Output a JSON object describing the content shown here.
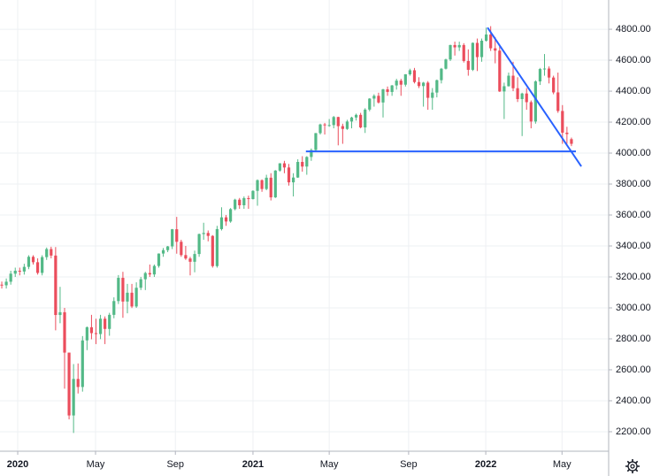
{
  "chart_data": {
    "type": "candlestick",
    "open": [
      3150,
      3146,
      3169,
      3221,
      3240,
      3235,
      3265,
      3330,
      3295,
      3226,
      3328,
      3380,
      3338,
      2954,
      2972,
      2711,
      2305,
      2541,
      2489,
      2790,
      2875,
      2837,
      2831,
      2930,
      2864,
      2955,
      3044,
      3194,
      3041,
      3098,
      3009,
      3130,
      3185,
      3225,
      3216,
      3271,
      3351,
      3373,
      3397,
      3508,
      3427,
      3341,
      3319,
      3298,
      3348,
      3477,
      3484,
      3465,
      3270,
      3509,
      3585,
      3558,
      3638,
      3699,
      3663,
      3709,
      3703,
      3756,
      3825,
      3768,
      3841,
      3714,
      3887,
      3934,
      3907,
      3811,
      3842,
      3943,
      3913,
      3975,
      4020,
      4129,
      4185,
      4180,
      4181,
      4233,
      4174,
      4156,
      4204,
      4230,
      4247,
      4166,
      4281,
      4352,
      4370,
      4327,
      4412,
      4395,
      4437,
      4468,
      4442,
      4509,
      4535,
      4459,
      4433,
      4455,
      4357,
      4391,
      4471,
      4545,
      4605,
      4698,
      4683,
      4698,
      4595,
      4538,
      4712,
      4620,
      4726,
      4766,
      4677,
      4662,
      4398,
      4432,
      4500,
      4419,
      4349,
      4385,
      4329,
      4204,
      4463,
      4543,
      4546,
      4488,
      4392,
      4272,
      4132,
      4090
    ],
    "high": [
      3170,
      3190,
      3240,
      3260,
      3260,
      3285,
      3340,
      3340,
      3320,
      3340,
      3390,
      3395,
      3393,
      3136,
      3000,
      2711,
      2637,
      2641,
      2818,
      2880,
      2955,
      2930,
      2955,
      2945,
      2968,
      3068,
      3212,
      3233,
      3155,
      3155,
      3165,
      3200,
      3233,
      3280,
      3280,
      3352,
      3387,
      3400,
      3510,
      3588,
      3440,
      3400,
      3330,
      3370,
      3480,
      3550,
      3500,
      3470,
      3530,
      3650,
      3600,
      3645,
      3705,
      3710,
      3720,
      3725,
      3760,
      3830,
      3830,
      3860,
      3870,
      3890,
      3935,
      3950,
      3930,
      3870,
      3960,
      3980,
      3980,
      4030,
      4130,
      4190,
      4195,
      4220,
      4240,
      4235,
      4190,
      4215,
      4235,
      4255,
      4260,
      4290,
      4355,
      4380,
      4390,
      4415,
      4430,
      4440,
      4480,
      4480,
      4510,
      4545,
      4550,
      4490,
      4460,
      4465,
      4420,
      4475,
      4550,
      4610,
      4700,
      4720,
      4720,
      4710,
      4670,
      4715,
      4740,
      4740,
      4810,
      4820,
      4750,
      4700,
      4455,
      4520,
      4590,
      4490,
      4390,
      4420,
      4340,
      4470,
      4550,
      4640,
      4560,
      4500,
      4520,
      4310,
      4170,
      4100
    ],
    "low": [
      3125,
      3125,
      3150,
      3200,
      3210,
      3215,
      3250,
      3280,
      3215,
      3210,
      3310,
      3320,
      2855,
      2901,
      2478,
      2280,
      2192,
      2447,
      2459,
      2727,
      2797,
      2766,
      2798,
      2766,
      2820,
      2933,
      3025,
      2936,
      2965,
      2999,
      3000,
      3115,
      3115,
      3200,
      3200,
      3260,
      3330,
      3360,
      3380,
      3350,
      3330,
      3310,
      3210,
      3230,
      3330,
      3440,
      3430,
      3260,
      3260,
      3500,
      3530,
      3550,
      3630,
      3640,
      3640,
      3640,
      3700,
      3660,
      3750,
      3760,
      3694,
      3710,
      3880,
      3870,
      3790,
      3720,
      3840,
      3880,
      3860,
      3950,
      4010,
      4120,
      4120,
      4170,
      4160,
      4050,
      4060,
      4150,
      4160,
      4210,
      4160,
      4130,
      4270,
      4300,
      4320,
      4230,
      4370,
      4370,
      4410,
      4370,
      4430,
      4500,
      4450,
      4420,
      4300,
      4280,
      4280,
      4360,
      4450,
      4540,
      4595,
      4630,
      4660,
      4585,
      4500,
      4530,
      4530,
      4590,
      4720,
      4660,
      4580,
      4395,
      4220,
      4430,
      4400,
      4330,
      4110,
      4280,
      4160,
      4190,
      4440,
      4500,
      4450,
      4380,
      4260,
      4060,
      4060,
      4045
    ],
    "close": [
      3146,
      3169,
      3221,
      3240,
      3235,
      3265,
      3330,
      3295,
      3226,
      3328,
      3380,
      3338,
      2954,
      2972,
      2711,
      2305,
      2541,
      2489,
      2790,
      2875,
      2837,
      2831,
      2930,
      2864,
      2955,
      3044,
      3194,
      3041,
      3098,
      3009,
      3130,
      3185,
      3225,
      3216,
      3271,
      3351,
      3373,
      3397,
      3508,
      3427,
      3341,
      3319,
      3298,
      3348,
      3477,
      3484,
      3465,
      3270,
      3509,
      3585,
      3558,
      3638,
      3699,
      3663,
      3709,
      3703,
      3756,
      3825,
      3768,
      3841,
      3714,
      3887,
      3934,
      3907,
      3811,
      3842,
      3943,
      3913,
      3975,
      4020,
      4129,
      4185,
      4180,
      4181,
      4233,
      4174,
      4156,
      4204,
      4230,
      4247,
      4166,
      4281,
      4352,
      4370,
      4327,
      4412,
      4395,
      4437,
      4468,
      4442,
      4509,
      4535,
      4459,
      4433,
      4455,
      4357,
      4391,
      4471,
      4545,
      4605,
      4698,
      4683,
      4698,
      4595,
      4538,
      4712,
      4620,
      4726,
      4766,
      4677,
      4662,
      4398,
      4432,
      4500,
      4419,
      4349,
      4385,
      4329,
      4204,
      4463,
      4543,
      4546,
      4488,
      4392,
      4272,
      4132,
      4123,
      4060
    ],
    "up_color": "#53b987",
    "down_color": "#eb4d5c",
    "xlim": [
      -0.4,
      135.1
    ],
    "ylim": [
      2074,
      4989
    ],
    "xticks": [
      {
        "value": 3.55,
        "label": "2020"
      },
      {
        "value": 20.9,
        "label": "May"
      },
      {
        "value": 38.7,
        "label": "Sep"
      },
      {
        "value": 56,
        "label": "2021"
      },
      {
        "value": 73,
        "label": "May"
      },
      {
        "value": 90.7,
        "label": "Sep"
      },
      {
        "value": 107.9,
        "label": "2022"
      },
      {
        "value": 124.9,
        "label": "May"
      }
    ],
    "yticks": [
      {
        "value": 2200,
        "label": "2200.00"
      },
      {
        "value": 2400,
        "label": "2400.00"
      },
      {
        "value": 2600,
        "label": "2600.00"
      },
      {
        "value": 2800,
        "label": "2800.00"
      },
      {
        "value": 3000,
        "label": "3000.00"
      },
      {
        "value": 3200,
        "label": "3200.00"
      },
      {
        "value": 3400,
        "label": "3400.00"
      },
      {
        "value": 3600,
        "label": "3600.00"
      },
      {
        "value": 3800,
        "label": "3800.00"
      },
      {
        "value": 4000,
        "label": "4000.00"
      },
      {
        "value": 4200,
        "label": "4200.00"
      },
      {
        "value": 4400,
        "label": "4400.00"
      },
      {
        "value": 4600,
        "label": "4600.00"
      },
      {
        "value": 4800,
        "label": "4800.00"
      }
    ],
    "grid": true,
    "trendlines": [
      {
        "color": "#2962ff",
        "x": [
          108.3,
          129.2
        ],
        "y": [
          4811,
          3914
        ]
      },
      {
        "color": "#2962ff",
        "x": [
          67.8,
          128
        ],
        "y": [
          4011,
          4011
        ]
      }
    ]
  }
}
